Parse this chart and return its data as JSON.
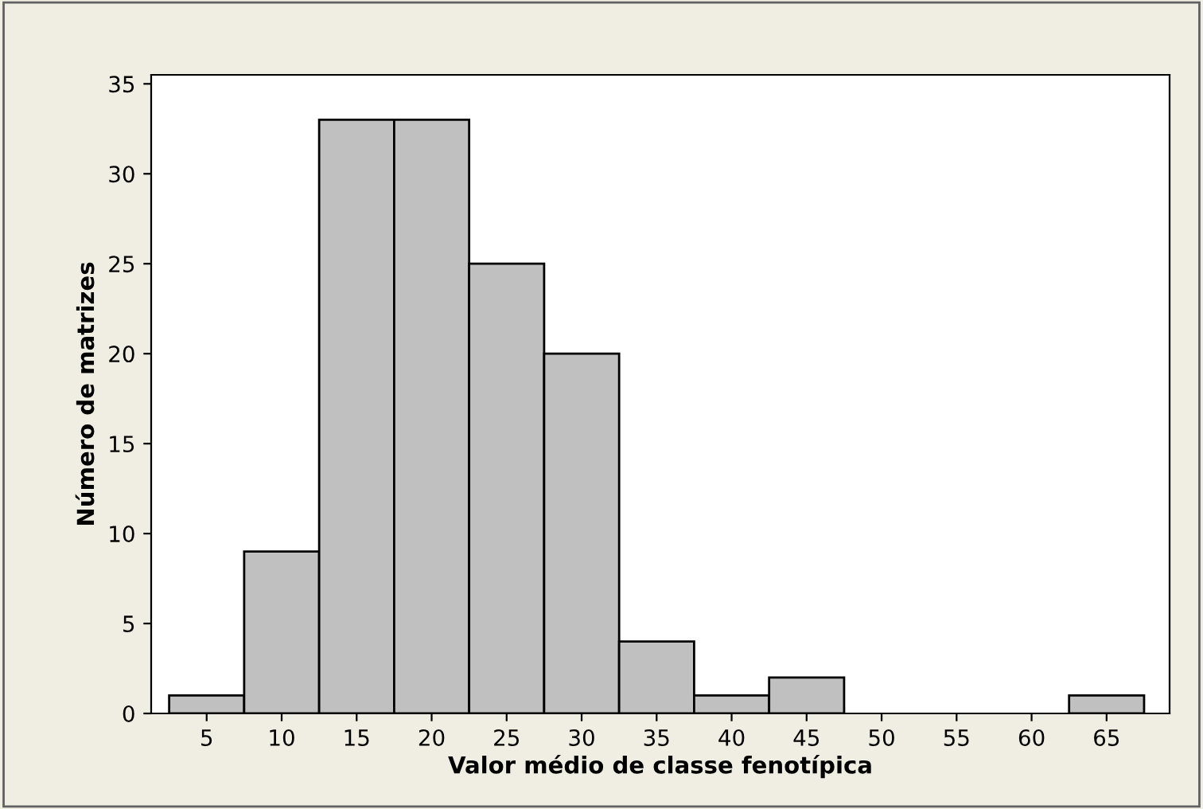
{
  "chart_data": {
    "type": "histogram",
    "xlabel": "Valor médio de classe fenotípica",
    "ylabel": "Número de matrizes",
    "bins": [
      2.5,
      7.5,
      12.5,
      17.5,
      22.5,
      27.5,
      32.5,
      37.5,
      42.5,
      47.5,
      52.5,
      57.5,
      62.5,
      67.5
    ],
    "values": [
      1,
      9,
      33,
      33,
      25,
      20,
      4,
      1,
      2,
      0,
      0,
      0,
      1
    ],
    "color": "#c0c0c0",
    "xlim": [
      1.3,
      69.2
    ],
    "xticks": [
      5,
      10,
      15,
      20,
      25,
      30,
      35,
      40,
      45,
      50,
      55,
      60,
      65
    ],
    "ylim": [
      0,
      35.5
    ],
    "yticks": [
      0,
      5,
      10,
      15,
      20,
      25,
      30,
      35
    ],
    "grid": false
  }
}
